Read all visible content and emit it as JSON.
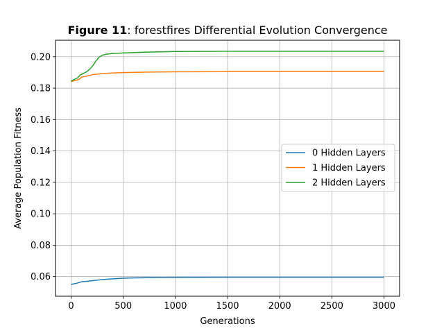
{
  "chart_data": {
    "type": "line",
    "title_bold": "Figure 11",
    "title_rest": ": forestfires Differential Evolution Convergence",
    "xlabel": "Generations",
    "ylabel": "Average Population Fitness",
    "xlim": [
      -150,
      3150
    ],
    "ylim": [
      0.0475,
      0.2105
    ],
    "xticks": [
      0,
      500,
      1000,
      1500,
      2000,
      2500,
      3000
    ],
    "xtick_labels": [
      "0",
      "500",
      "1000",
      "1500",
      "2000",
      "2500",
      "3000"
    ],
    "yticks": [
      0.06,
      0.08,
      0.1,
      0.12,
      0.14,
      0.16,
      0.18,
      0.2
    ],
    "ytick_labels": [
      "0.06",
      "0.08",
      "0.10",
      "0.12",
      "0.14",
      "0.16",
      "0.18",
      "0.20"
    ],
    "grid": true,
    "legend_position": "center-right",
    "series": [
      {
        "name": "0 Hidden Layers",
        "color": "#1f77b4",
        "x": [
          0,
          50,
          100,
          150,
          200,
          300,
          400,
          500,
          700,
          1000,
          1500,
          2000,
          2500,
          3000
        ],
        "y": [
          0.055,
          0.0557,
          0.0567,
          0.057,
          0.0574,
          0.0581,
          0.0586,
          0.059,
          0.0593,
          0.0595,
          0.0596,
          0.0596,
          0.0596,
          0.0596
        ]
      },
      {
        "name": "1 Hidden Layers",
        "color": "#ff7f0e",
        "x": [
          0,
          50,
          80,
          100,
          150,
          200,
          300,
          400,
          500,
          700,
          1000,
          1500,
          2000,
          2500,
          3000
        ],
        "y": [
          0.1842,
          0.185,
          0.1858,
          0.187,
          0.1877,
          0.1885,
          0.1893,
          0.1897,
          0.1899,
          0.1902,
          0.1904,
          0.1905,
          0.1905,
          0.1905,
          0.1905
        ]
      },
      {
        "name": "2 Hidden Layers",
        "color": "#2ca02c",
        "x": [
          0,
          30,
          60,
          90,
          120,
          150,
          180,
          210,
          240,
          270,
          300,
          350,
          400,
          500,
          700,
          1000,
          1500,
          2000,
          2500,
          3000
        ],
        "y": [
          0.1845,
          0.1855,
          0.1865,
          0.1885,
          0.1895,
          0.1905,
          0.1922,
          0.1945,
          0.1975,
          0.1998,
          0.201,
          0.2017,
          0.2021,
          0.2024,
          0.2029,
          0.2033,
          0.2035,
          0.2035,
          0.2035,
          0.2035
        ]
      }
    ]
  }
}
